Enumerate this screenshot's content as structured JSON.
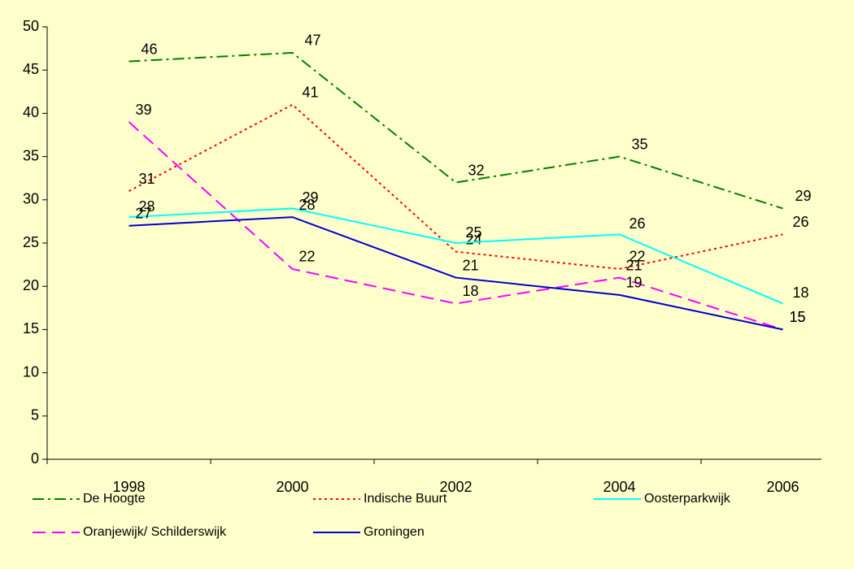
{
  "chart_data": {
    "type": "line",
    "categories": [
      "1998",
      "2000",
      "2002",
      "2004",
      "2006"
    ],
    "series": [
      {
        "name": "De Hoogte",
        "color": "#008000",
        "dash": "14,5,3,5",
        "values": [
          46,
          47,
          32,
          35,
          29
        ]
      },
      {
        "name": "Indische Buurt",
        "color": "#ff0000",
        "dash": "3,4",
        "values": [
          31,
          41,
          24,
          22,
          26
        ]
      },
      {
        "name": "Oosterparkwijk",
        "color": "#00ffff",
        "dash": "none",
        "values": [
          28,
          29,
          25,
          26,
          18
        ]
      },
      {
        "name": "Oranjewijk/ Schilderswijk",
        "color": "#ff00ff",
        "dash": "16,8",
        "values": [
          39,
          22,
          18,
          21,
          15
        ]
      },
      {
        "name": "Groningen",
        "color": "#0000cc",
        "dash": "none",
        "values": [
          27,
          28,
          21,
          19,
          15
        ]
      }
    ],
    "ylim": [
      0,
      50
    ],
    "yticks": [
      0,
      5,
      10,
      15,
      20,
      25,
      30,
      35,
      40,
      45,
      50
    ],
    "grid": false,
    "legend": "bottom"
  }
}
